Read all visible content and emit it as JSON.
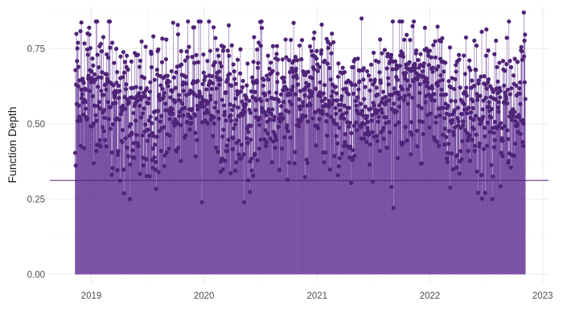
{
  "chart_data": {
    "type": "lollipop",
    "title": "",
    "xlabel": "",
    "ylabel": "Function Depth",
    "x_start": "2018-11-10",
    "x_end": "2022-11-06",
    "xlim": [
      "2018-08-20",
      "2023-01-20"
    ],
    "ylim": [
      -0.03,
      0.89
    ],
    "x_ticks": [
      "2019-01-01",
      "2020-01-01",
      "2021-01-01",
      "2022-01-01",
      "2023-01-01"
    ],
    "x_tick_labels": [
      "2019",
      "2020",
      "2021",
      "2022",
      "2023"
    ],
    "y_ticks": [
      0,
      0.25,
      0.5,
      0.75
    ],
    "y_tick_labels": [
      "0.00",
      "0.25",
      "0.50",
      "0.75"
    ],
    "reference_line": 0.312,
    "notable_points": [
      {
        "x": "2018-12-20",
        "y": 0.8
      },
      {
        "x": "2019-12-25",
        "y": 0.24
      },
      {
        "x": "2020-05-10",
        "y": 0.24
      },
      {
        "x": "2020-07-05",
        "y": 0.84
      },
      {
        "x": "2021-05-25",
        "y": 0.85
      },
      {
        "x": "2021-09-05",
        "y": 0.22
      },
      {
        "x": "2022-11-01",
        "y": 0.87
      }
    ],
    "series": [
      {
        "color": "#5b2a86",
        "y_mean": 0.58,
        "y_spread": 0.11,
        "y_min": 0.22,
        "y_max": 0.87,
        "frequency": "daily",
        "n_points": 1458
      }
    ],
    "grid": true,
    "legend": "none",
    "colors": {
      "stem": "#6a3d9a",
      "point": "#4f2378",
      "reference": "#4b1d72",
      "grid_major": "#ebebeb",
      "grid_minor": "#f4f4f4",
      "tick_text": "#4d4d4d",
      "title_text": "#1a1a1a",
      "background": "#ffffff"
    }
  }
}
